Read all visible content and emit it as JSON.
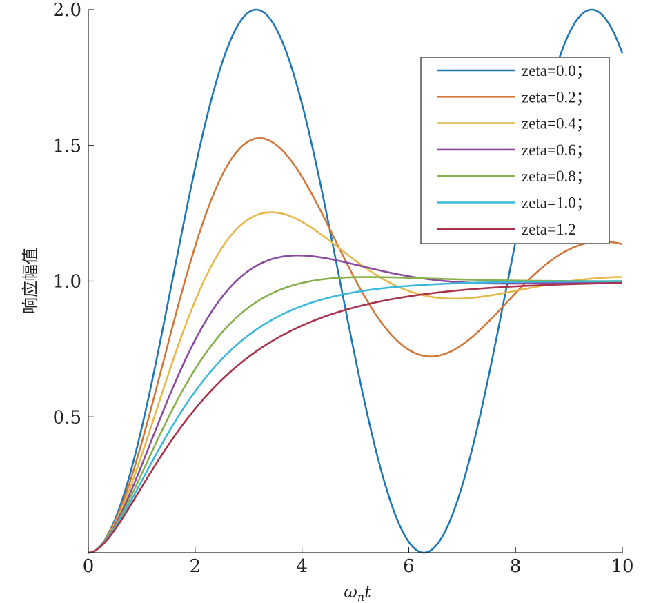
{
  "chart_data": {
    "type": "line",
    "title": "",
    "xlabel_main": "ω",
    "xlabel_sub": "n",
    "xlabel_tail": "t",
    "ylabel": "响应幅值",
    "xlim": [
      0,
      10
    ],
    "ylim": [
      0,
      2
    ],
    "x_ticks": [
      0,
      2,
      4,
      6,
      8,
      10
    ],
    "x_tick_labels": [
      "0",
      "2",
      "4",
      "6",
      "8",
      "10"
    ],
    "y_ticks": [
      0.5,
      1.0,
      1.5,
      2.0
    ],
    "y_tick_labels": [
      "0.5",
      "1.0",
      "1.5",
      "2.0"
    ],
    "grid": false,
    "legend_position": "top-right",
    "series": [
      {
        "name": "zeta=0.0；",
        "zeta": 0.0,
        "color": "#1f77b4"
      },
      {
        "name": "zeta=0.2；",
        "zeta": 0.2,
        "color": "#d2773a"
      },
      {
        "name": "zeta=0.4；",
        "zeta": 0.4,
        "color": "#e6b94a"
      },
      {
        "name": "zeta=0.6；",
        "zeta": 0.6,
        "color": "#8a4a9e"
      },
      {
        "name": "zeta=0.8；",
        "zeta": 0.8,
        "color": "#86b04c"
      },
      {
        "name": "zeta=1.0；",
        "zeta": 1.0,
        "color": "#3ab8dc"
      },
      {
        "name": "zeta=1.2",
        "zeta": 1.2,
        "color": "#a8334a"
      }
    ]
  }
}
